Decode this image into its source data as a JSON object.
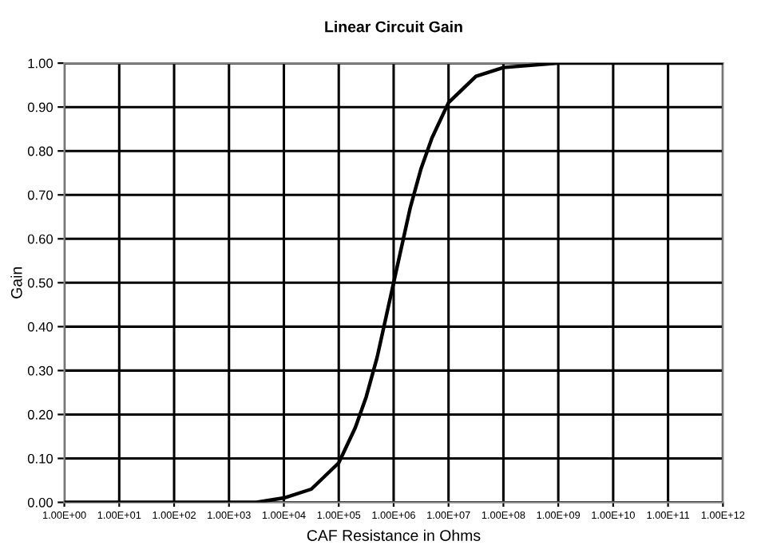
{
  "chart_data": {
    "type": "line",
    "title": "Linear Circuit Gain",
    "xlabel": "CAF Resistance in Ohms",
    "ylabel": "Gain",
    "log": "x",
    "grid": true,
    "marker": "none",
    "line_style": "solid",
    "xlim": [
      1,
      1000000000000
    ],
    "ylim": [
      0,
      1
    ],
    "xticks": [
      {
        "value": 1,
        "label": "1.00E+00"
      },
      {
        "value": 10,
        "label": "1.00E+01"
      },
      {
        "value": 100,
        "label": "1.00E+02"
      },
      {
        "value": 1000,
        "label": "1.00E+03"
      },
      {
        "value": 10000,
        "label": "1.00E+04"
      },
      {
        "value": 100000,
        "label": "1.00E+05"
      },
      {
        "value": 1000000,
        "label": "1.00E+06"
      },
      {
        "value": 10000000,
        "label": "1.00E+07"
      },
      {
        "value": 100000000,
        "label": "1.00E+08"
      },
      {
        "value": 1000000000,
        "label": "1.00E+09"
      },
      {
        "value": 10000000000,
        "label": "1.00E+10"
      },
      {
        "value": 100000000000,
        "label": "1.00E+11"
      },
      {
        "value": 1000000000000,
        "label": "1.00E+12"
      }
    ],
    "yticks": [
      {
        "value": 0,
        "label": "0.00"
      },
      {
        "value": 0.1,
        "label": "0.10"
      },
      {
        "value": 0.2,
        "label": "0.20"
      },
      {
        "value": 0.3,
        "label": "0.30"
      },
      {
        "value": 0.4,
        "label": "0.40"
      },
      {
        "value": 0.5,
        "label": "0.50"
      },
      {
        "value": 0.6,
        "label": "0.60"
      },
      {
        "value": 0.7,
        "label": "0.70"
      },
      {
        "value": 0.8,
        "label": "0.80"
      },
      {
        "value": 0.9,
        "label": "0.90"
      },
      {
        "value": 1,
        "label": "1.00"
      }
    ],
    "x": [
      1,
      10,
      100,
      1000,
      3162,
      10000,
      31620,
      100000,
      200000,
      316200,
      500000,
      1000000,
      2000000,
      3162000,
      5000000,
      10000000,
      31620000,
      100000000,
      1000000000,
      10000000000,
      100000000000,
      1000000000000
    ],
    "series": [
      {
        "color": "#000000",
        "values": [
          0,
          0,
          0,
          0,
          0,
          0.01,
          0.03,
          0.09,
          0.17,
          0.24,
          0.33,
          0.5,
          0.67,
          0.76,
          0.83,
          0.91,
          0.97,
          0.99,
          1,
          1,
          1,
          1
        ]
      }
    ]
  }
}
